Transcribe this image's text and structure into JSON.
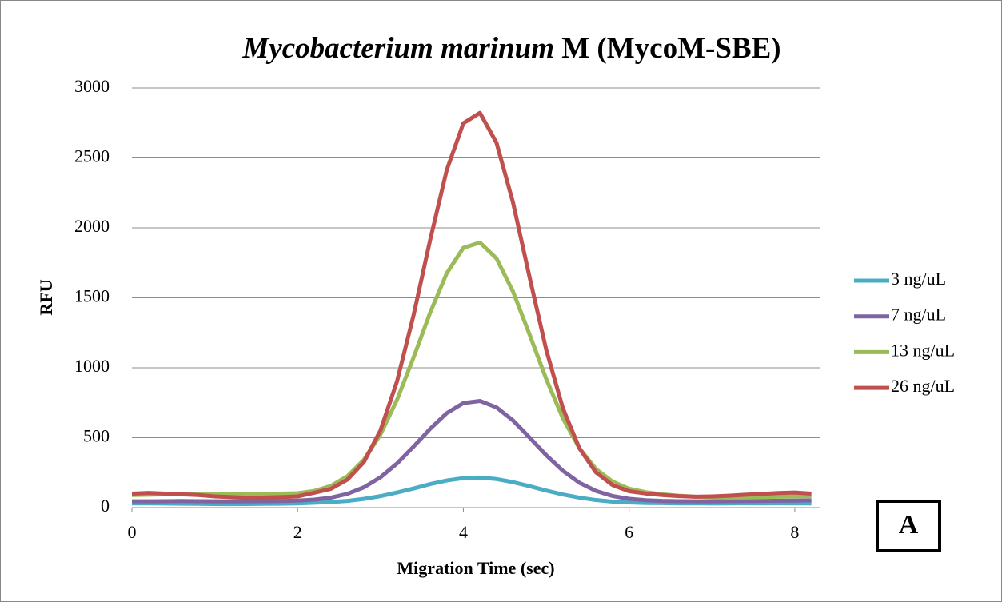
{
  "chart_data": {
    "type": "line",
    "title": [
      "Mycobacterium marinum",
      "M (MycoM-SBE)"
    ],
    "x_label": "Migration Time (sec)",
    "y_label": "RFU",
    "annotation": "A",
    "x": [
      0,
      0.2,
      0.4,
      0.6,
      0.8,
      1.0,
      1.2,
      1.4,
      1.6,
      1.8,
      2.0,
      2.2,
      2.4,
      2.6,
      2.8,
      3.0,
      3.2,
      3.4,
      3.6,
      3.8,
      4.0,
      4.2,
      4.4,
      4.6,
      4.8,
      5.0,
      5.2,
      5.4,
      5.6,
      5.8,
      6.0,
      6.2,
      6.4,
      6.6,
      6.8,
      7.0,
      7.2,
      7.4,
      7.6,
      7.8,
      8.0,
      8.2
    ],
    "series": [
      {
        "name": "3 ng/uL",
        "color": "#4bacc6",
        "values": [
          30,
          30,
          29,
          28,
          27,
          26,
          25,
          26,
          27,
          28,
          30,
          35,
          40,
          48,
          62,
          82,
          108,
          137,
          168,
          194,
          211,
          215,
          204,
          182,
          153,
          122,
          94,
          71,
          54,
          43,
          37,
          33,
          32,
          30,
          31,
          29,
          30,
          31,
          30,
          31,
          30,
          30
        ]
      },
      {
        "name": "7 ng/uL",
        "color": "#8064a2",
        "values": [
          45,
          45,
          46,
          47,
          46,
          45,
          44,
          45,
          46,
          47,
          50,
          57,
          71,
          98,
          145,
          217,
          316,
          437,
          564,
          676,
          748,
          763,
          717,
          623,
          501,
          375,
          264,
          178,
          119,
          83,
          63,
          53,
          48,
          46,
          45,
          45,
          46,
          47,
          48,
          49,
          50,
          52
        ]
      },
      {
        "name": "13 ng/uL",
        "color": "#9bbb59",
        "values": [
          90,
          92,
          95,
          96,
          97,
          98,
          95,
          97,
          99,
          100,
          103,
          119,
          155,
          224,
          342,
          523,
          772,
          1075,
          1395,
          1676,
          1857,
          1895,
          1781,
          1543,
          1236,
          919,
          640,
          425,
          276,
          186,
          135,
          110,
          95,
          85,
          78,
          75,
          72,
          72,
          74,
          78,
          80,
          82
        ]
      },
      {
        "name": "26 ng/uL",
        "color": "#c0504d",
        "values": [
          100,
          105,
          100,
          95,
          90,
          80,
          75,
          70,
          72,
          75,
          80,
          106,
          134,
          200,
          326,
          553,
          904,
          1378,
          1915,
          2414,
          2748,
          2822,
          2608,
          2178,
          1644,
          1128,
          712,
          424,
          252,
          161,
          117,
          101,
          90,
          82,
          78,
          80,
          85,
          92,
          98,
          104,
          108,
          100
        ]
      }
    ],
    "xlim": [
      0,
      8.3
    ],
    "xticks": [
      0,
      2,
      4,
      6,
      8
    ],
    "ylim": [
      0,
      3000
    ],
    "yticks": [
      0,
      500,
      1000,
      1500,
      2000,
      2500,
      3000
    ],
    "grid": true,
    "legend": "right"
  }
}
